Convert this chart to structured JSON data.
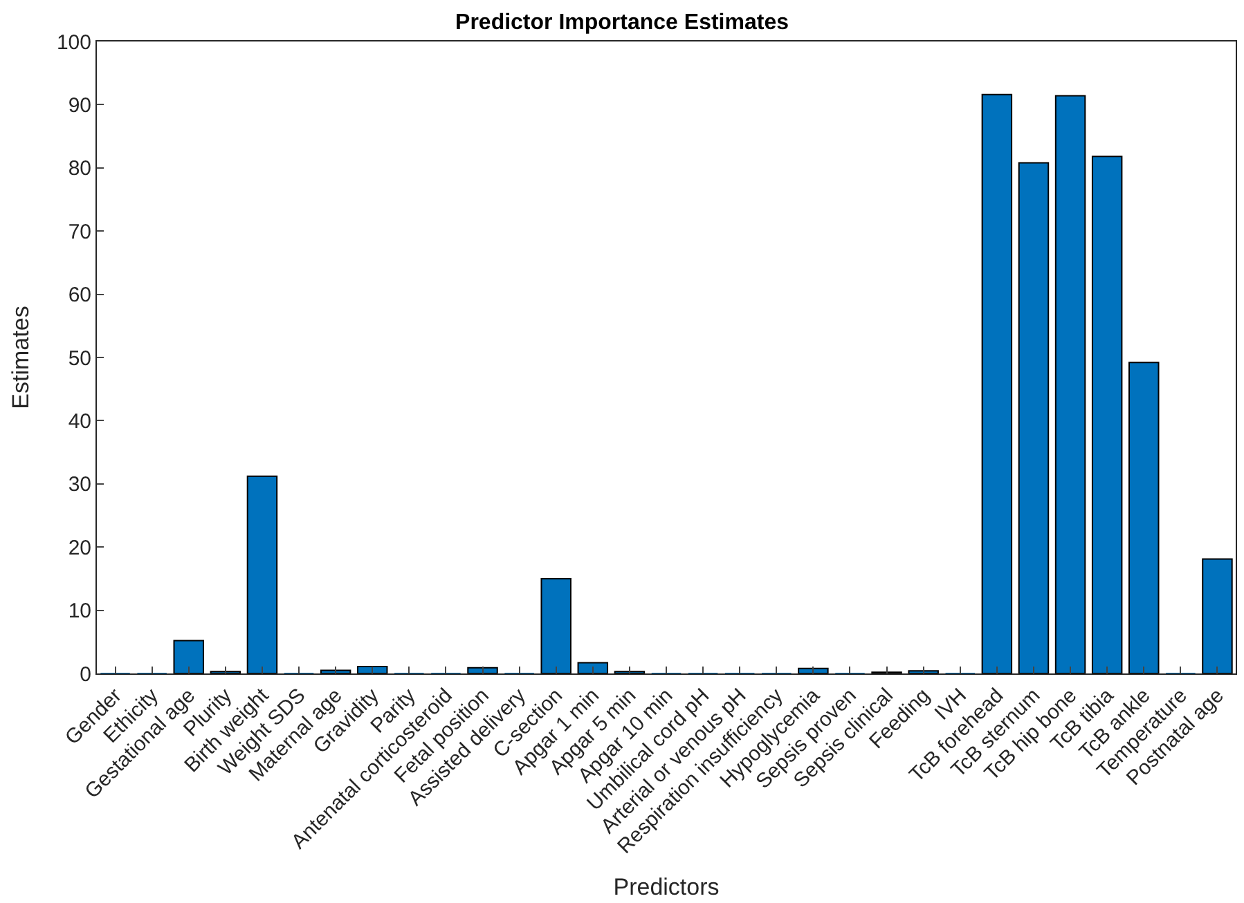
{
  "chart_data": {
    "type": "bar",
    "title": "Predictor Importance Estimates",
    "xlabel": "Predictors",
    "ylabel": "Estimates",
    "categories": [
      "Gender",
      "Ethicity",
      "Gestational age",
      "Plurity",
      "Birth weight",
      "Weight SDS",
      "Maternal age",
      "Gravidity",
      "Parity",
      "Antenatal corticosteroid",
      "Fetal position",
      "Assisted delivery",
      "C-section",
      "Apgar 1 min",
      "Apgar 5 min",
      "Apgar 10 min",
      "Umbilical cord pH",
      "Arterial or venous pH",
      "Respiration insufficiency",
      "Hypoglycemia",
      "Sepsis proven",
      "Sepsis clinical",
      "Feeding",
      "IVH",
      "TcB forehead",
      "TcB sternum",
      "TcB hip bone",
      "TcB tibia",
      "TcB ankle",
      "Temperature",
      "Postnatal age"
    ],
    "values": [
      0,
      0,
      5.2,
      0.3,
      31.2,
      0,
      0.5,
      1.1,
      0,
      0,
      0.9,
      0,
      15,
      1.7,
      0.3,
      0,
      0,
      0,
      0,
      0.8,
      0,
      0.2,
      0.4,
      0,
      91.6,
      80.8,
      91.4,
      81.8,
      49.2,
      0,
      18.1
    ],
    "color": "#0072bd",
    "ylim": [
      0,
      100
    ],
    "yticks": [
      0,
      10,
      20,
      30,
      40,
      50,
      60,
      70,
      80,
      90,
      100
    ],
    "grid": false
  }
}
